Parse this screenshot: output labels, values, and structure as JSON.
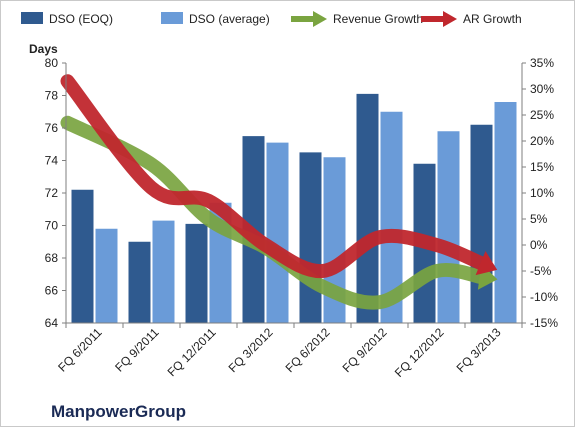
{
  "chart_data": {
    "type": "bar",
    "title": "",
    "company": "ManpowerGroup",
    "ylabel": "Days",
    "categories": [
      "FQ 6/2011",
      "FQ 9/2011",
      "FQ 12/2011",
      "FQ 3/2012",
      "FQ 6/2012",
      "FQ 9/2012",
      "FQ 12/2012",
      "FQ 3/2013"
    ],
    "y_left": {
      "min": 64,
      "max": 80,
      "step": 2,
      "ticks": [
        "64",
        "66",
        "68",
        "70",
        "72",
        "74",
        "76",
        "78",
        "80"
      ]
    },
    "y_right": {
      "min": -15,
      "max": 35,
      "step": 5,
      "ticks": [
        "-15%",
        "-10%",
        "-5%",
        "0%",
        "5%",
        "10%",
        "15%",
        "20%",
        "25%",
        "30%",
        "35%"
      ]
    },
    "series": [
      {
        "name": "DSO (EOQ)",
        "kind": "bar",
        "axis": "left",
        "color": "#2f5a8f",
        "values": [
          72.2,
          69.0,
          70.1,
          75.5,
          74.5,
          78.1,
          73.8,
          76.2
        ]
      },
      {
        "name": "DSO (average)",
        "kind": "bar",
        "axis": "left",
        "color": "#6a9bd8",
        "values": [
          69.8,
          70.3,
          71.4,
          75.1,
          74.2,
          77.0,
          75.8,
          77.6
        ]
      },
      {
        "name": "Revenue Growth",
        "kind": "arrow-line",
        "axis": "right",
        "color": "#7aa440",
        "values": [
          23.5,
          15.5,
          5.0,
          -0.5,
          -8.0,
          -11.0,
          -5.0,
          -6.5
        ]
      },
      {
        "name": "AR Growth",
        "kind": "arrow-line",
        "axis": "right",
        "color": "#c0272d",
        "values": [
          31.5,
          11.0,
          8.5,
          0.0,
          -5.0,
          1.5,
          0.0,
          -4.5
        ]
      }
    ],
    "legend_position": "top",
    "grid": false
  }
}
